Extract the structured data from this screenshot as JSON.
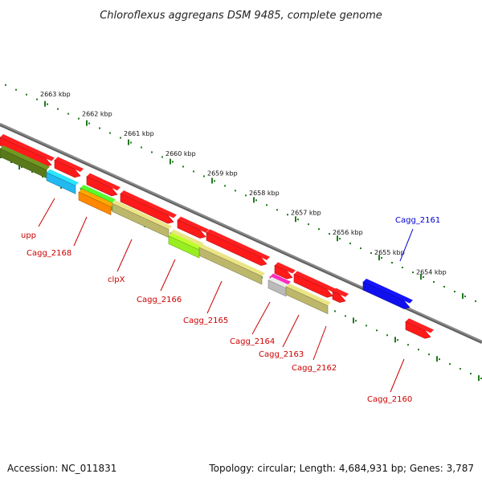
{
  "title": "Chloroflexus aggregans DSM 9485, complete genome",
  "footer": {
    "accession": "Accession: NC_011831",
    "topology": "Topology: circular; Length: 4,684,931 bp; Genes: 3,787"
  },
  "colors": {
    "backbone": "#8a8a8a",
    "tick": "#1f7a1f",
    "label_red": "#cc0000",
    "label_blue": "#0000cc",
    "gene_red": "#ff1a1a",
    "gene_olive": "#5a7a1a",
    "gene_khaki": "#bdb76b",
    "gene_cyan": "#22b8f0",
    "gene_green": "#44cc22",
    "gene_orange": "#ff8800",
    "gene_lime": "#99ee22",
    "gene_magenta": "#dd2299",
    "gene_blue": "#1010ee"
  },
  "kbp_labels": [
    "2663 kbp",
    "2662 kbp",
    "2661 kbp",
    "2660 kbp",
    "2659 kbp",
    "2658 kbp",
    "2657 kbp",
    "2656 kbp",
    "2655 kbp",
    "2654 kbp"
  ],
  "gene_labels": [
    {
      "text": "upp",
      "color": "label_red"
    },
    {
      "text": "Cagg_2168",
      "color": "label_red"
    },
    {
      "text": "clpX",
      "color": "label_red"
    },
    {
      "text": "Cagg_2166",
      "color": "label_red"
    },
    {
      "text": "Cagg_2165",
      "color": "label_red"
    },
    {
      "text": "Cagg_2164",
      "color": "label_red"
    },
    {
      "text": "Cagg_2163",
      "color": "label_red"
    },
    {
      "text": "Cagg_2162",
      "color": "label_red"
    },
    {
      "text": "Cagg_2161",
      "color": "label_blue"
    },
    {
      "text": "Cagg_2160",
      "color": "label_red"
    }
  ]
}
